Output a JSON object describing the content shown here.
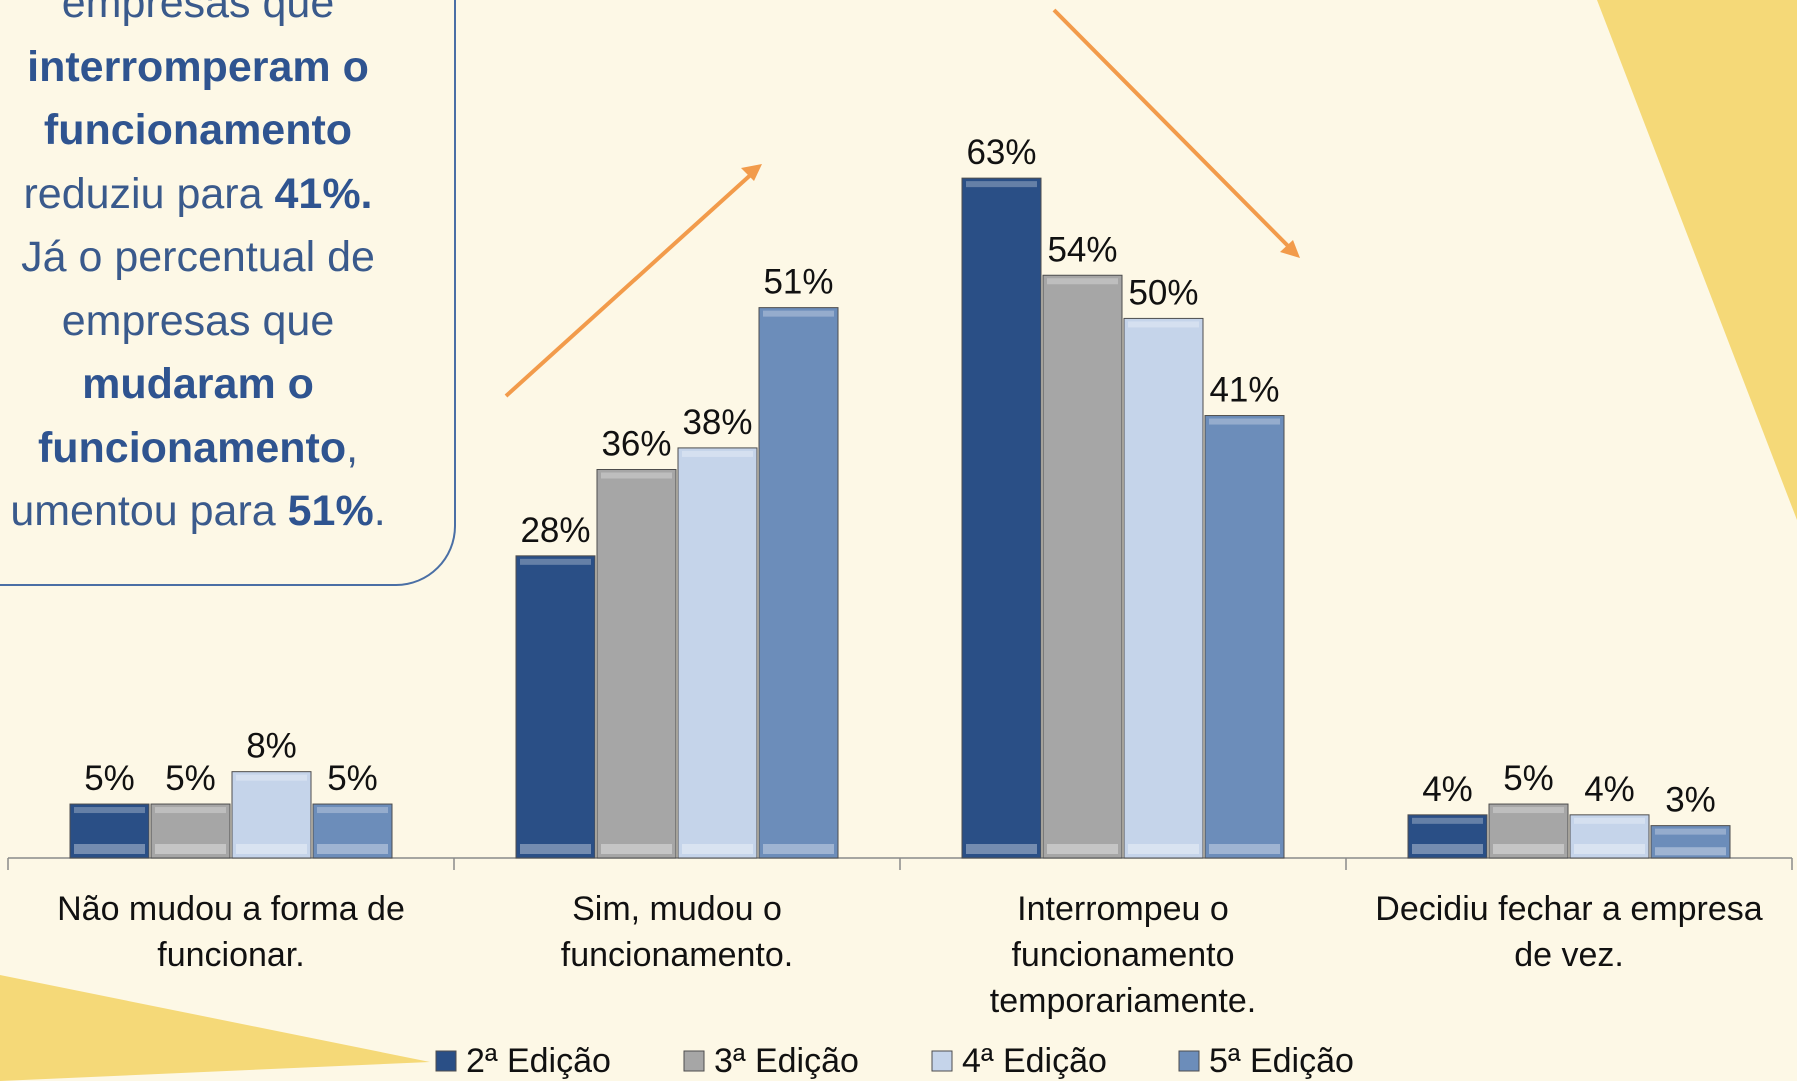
{
  "colors": {
    "background": "#fdf8e6",
    "decor": "#f5d978",
    "arrow": "#f29b4b",
    "callout_text": "#3a5a8c",
    "callout_border": "#4a6fa5"
  },
  "callout": {
    "line1": "empresas que",
    "line2": "interromperam o",
    "line3": "funcionamento",
    "line4_pre": "reduziu para ",
    "line4_bold": "41%.",
    "line5": "Já o percentual de",
    "line6": "empresas que",
    "line7": "mudaram o",
    "line8_bold": "funcionamento",
    "line8_post": ",",
    "line9_pre": "umentou para ",
    "line9_bold": "51%",
    "line9_post": "."
  },
  "chart_data": {
    "type": "bar",
    "categories": [
      [
        "Não mudou a forma de",
        "funcionar."
      ],
      [
        "Sim, mudou o",
        "funcionamento."
      ],
      [
        "Interrompeu o",
        "funcionamento",
        "temporariamente."
      ],
      [
        "Decidiu fechar a empresa",
        "de vez."
      ]
    ],
    "series": [
      {
        "name": "2ª Edição",
        "values": [
          5,
          28,
          63,
          4
        ],
        "color": "#2a4f86"
      },
      {
        "name": "3ª Edição",
        "values": [
          5,
          36,
          54,
          5
        ],
        "color": "#a6a6a6"
      },
      {
        "name": "4ª Edição",
        "values": [
          8,
          38,
          50,
          4
        ],
        "color": "#c5d4ea"
      },
      {
        "name": "5ª Edição",
        "values": [
          5,
          51,
          41,
          3
        ],
        "color": "#6c8dba"
      }
    ],
    "value_suffix": "%",
    "ylim": [
      0,
      72
    ],
    "legend": "bottom",
    "grid": false,
    "annotations": [
      "arrow up over 'Sim, mudou o funcionamento.'",
      "arrow down over 'Interrompeu o funcionamento temporariamente.'"
    ]
  }
}
